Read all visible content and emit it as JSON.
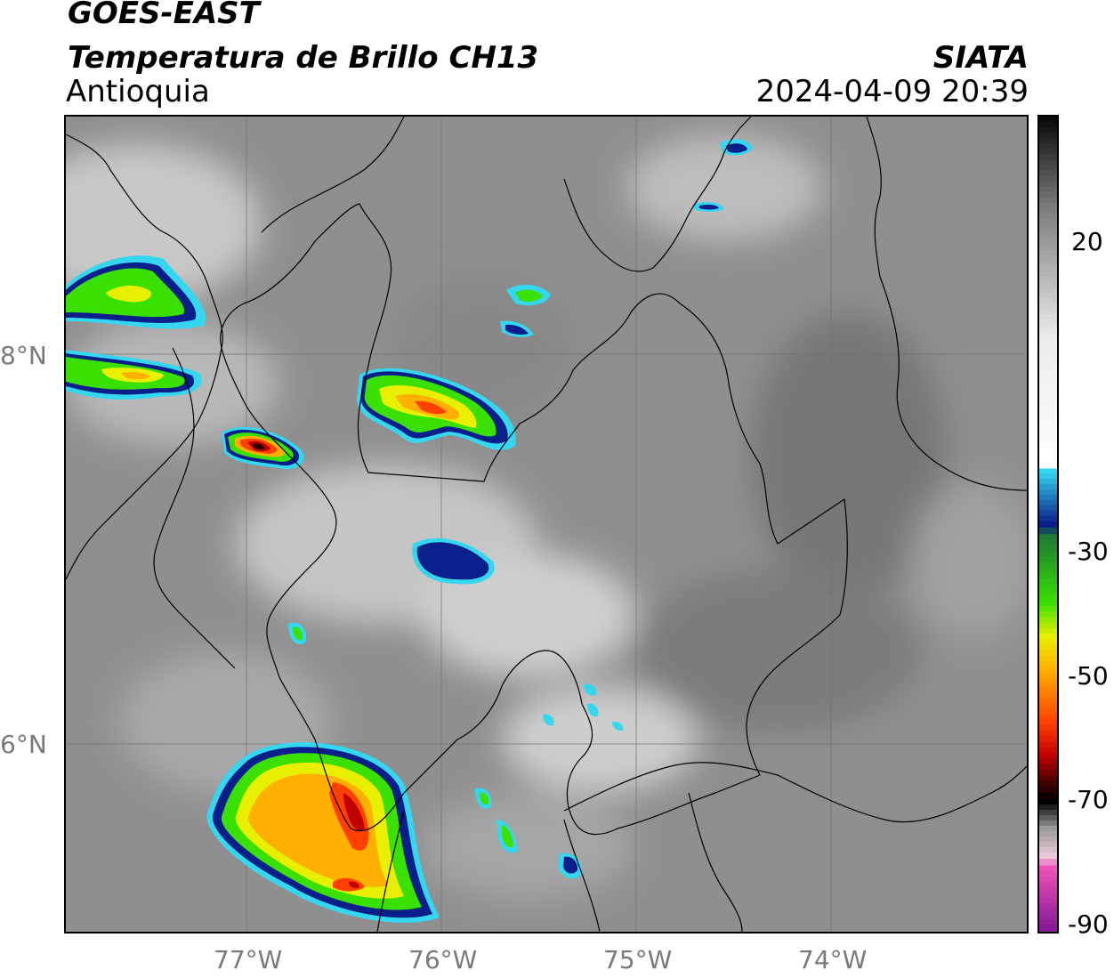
{
  "header": {
    "satellite": "GOES-EAST",
    "product": "Temperatura de Brillo CH13",
    "region": "Antioquia",
    "source": "SIATA",
    "datetime": "2024-04-09 20:39"
  },
  "map": {
    "lon_labels": [
      "77°W",
      "76°W",
      "75°W",
      "74°W"
    ],
    "lat_labels": [
      "8°N",
      "6°N"
    ],
    "lon_values": [
      -77,
      -76,
      -75,
      -74
    ],
    "lat_values": [
      8,
      6
    ],
    "lon_range": [
      -77.95,
      -73.0
    ],
    "lat_range": [
      5.0,
      9.2
    ],
    "grid": true,
    "background_color": "#8f8f8f"
  },
  "colorbar": {
    "ticks": [
      "20",
      "-30",
      "-50",
      "-70",
      "-90"
    ],
    "tick_values": [
      20,
      -30,
      -50,
      -70,
      -90
    ],
    "range": [
      -90,
      33
    ],
    "stops": [
      {
        "value": 33,
        "color": "#0a0a0a"
      },
      {
        "value": 20,
        "color": "#7a7a7a"
      },
      {
        "value": 0,
        "color": "#ececec"
      },
      {
        "value": -20,
        "color": "#ffffff"
      },
      {
        "value": -20.1,
        "color": "#35d6f0"
      },
      {
        "value": -28,
        "color": "#0a1f8a"
      },
      {
        "value": -30,
        "color": "#1e7a35"
      },
      {
        "value": -40,
        "color": "#3ae000"
      },
      {
        "value": -45,
        "color": "#e8ef00"
      },
      {
        "value": -50,
        "color": "#ffb000"
      },
      {
        "value": -58,
        "color": "#ff4000"
      },
      {
        "value": -63,
        "color": "#c00000"
      },
      {
        "value": -68,
        "color": "#2a0000"
      },
      {
        "value": -70,
        "color": "#000000"
      },
      {
        "value": -74,
        "color": "#9a9a9a"
      },
      {
        "value": -78,
        "color": "#e6c8d8"
      },
      {
        "value": -80,
        "color": "#ee52b8"
      },
      {
        "value": -89,
        "color": "#8a1a96"
      },
      {
        "value": -90,
        "color": "#ffffff"
      }
    ]
  }
}
